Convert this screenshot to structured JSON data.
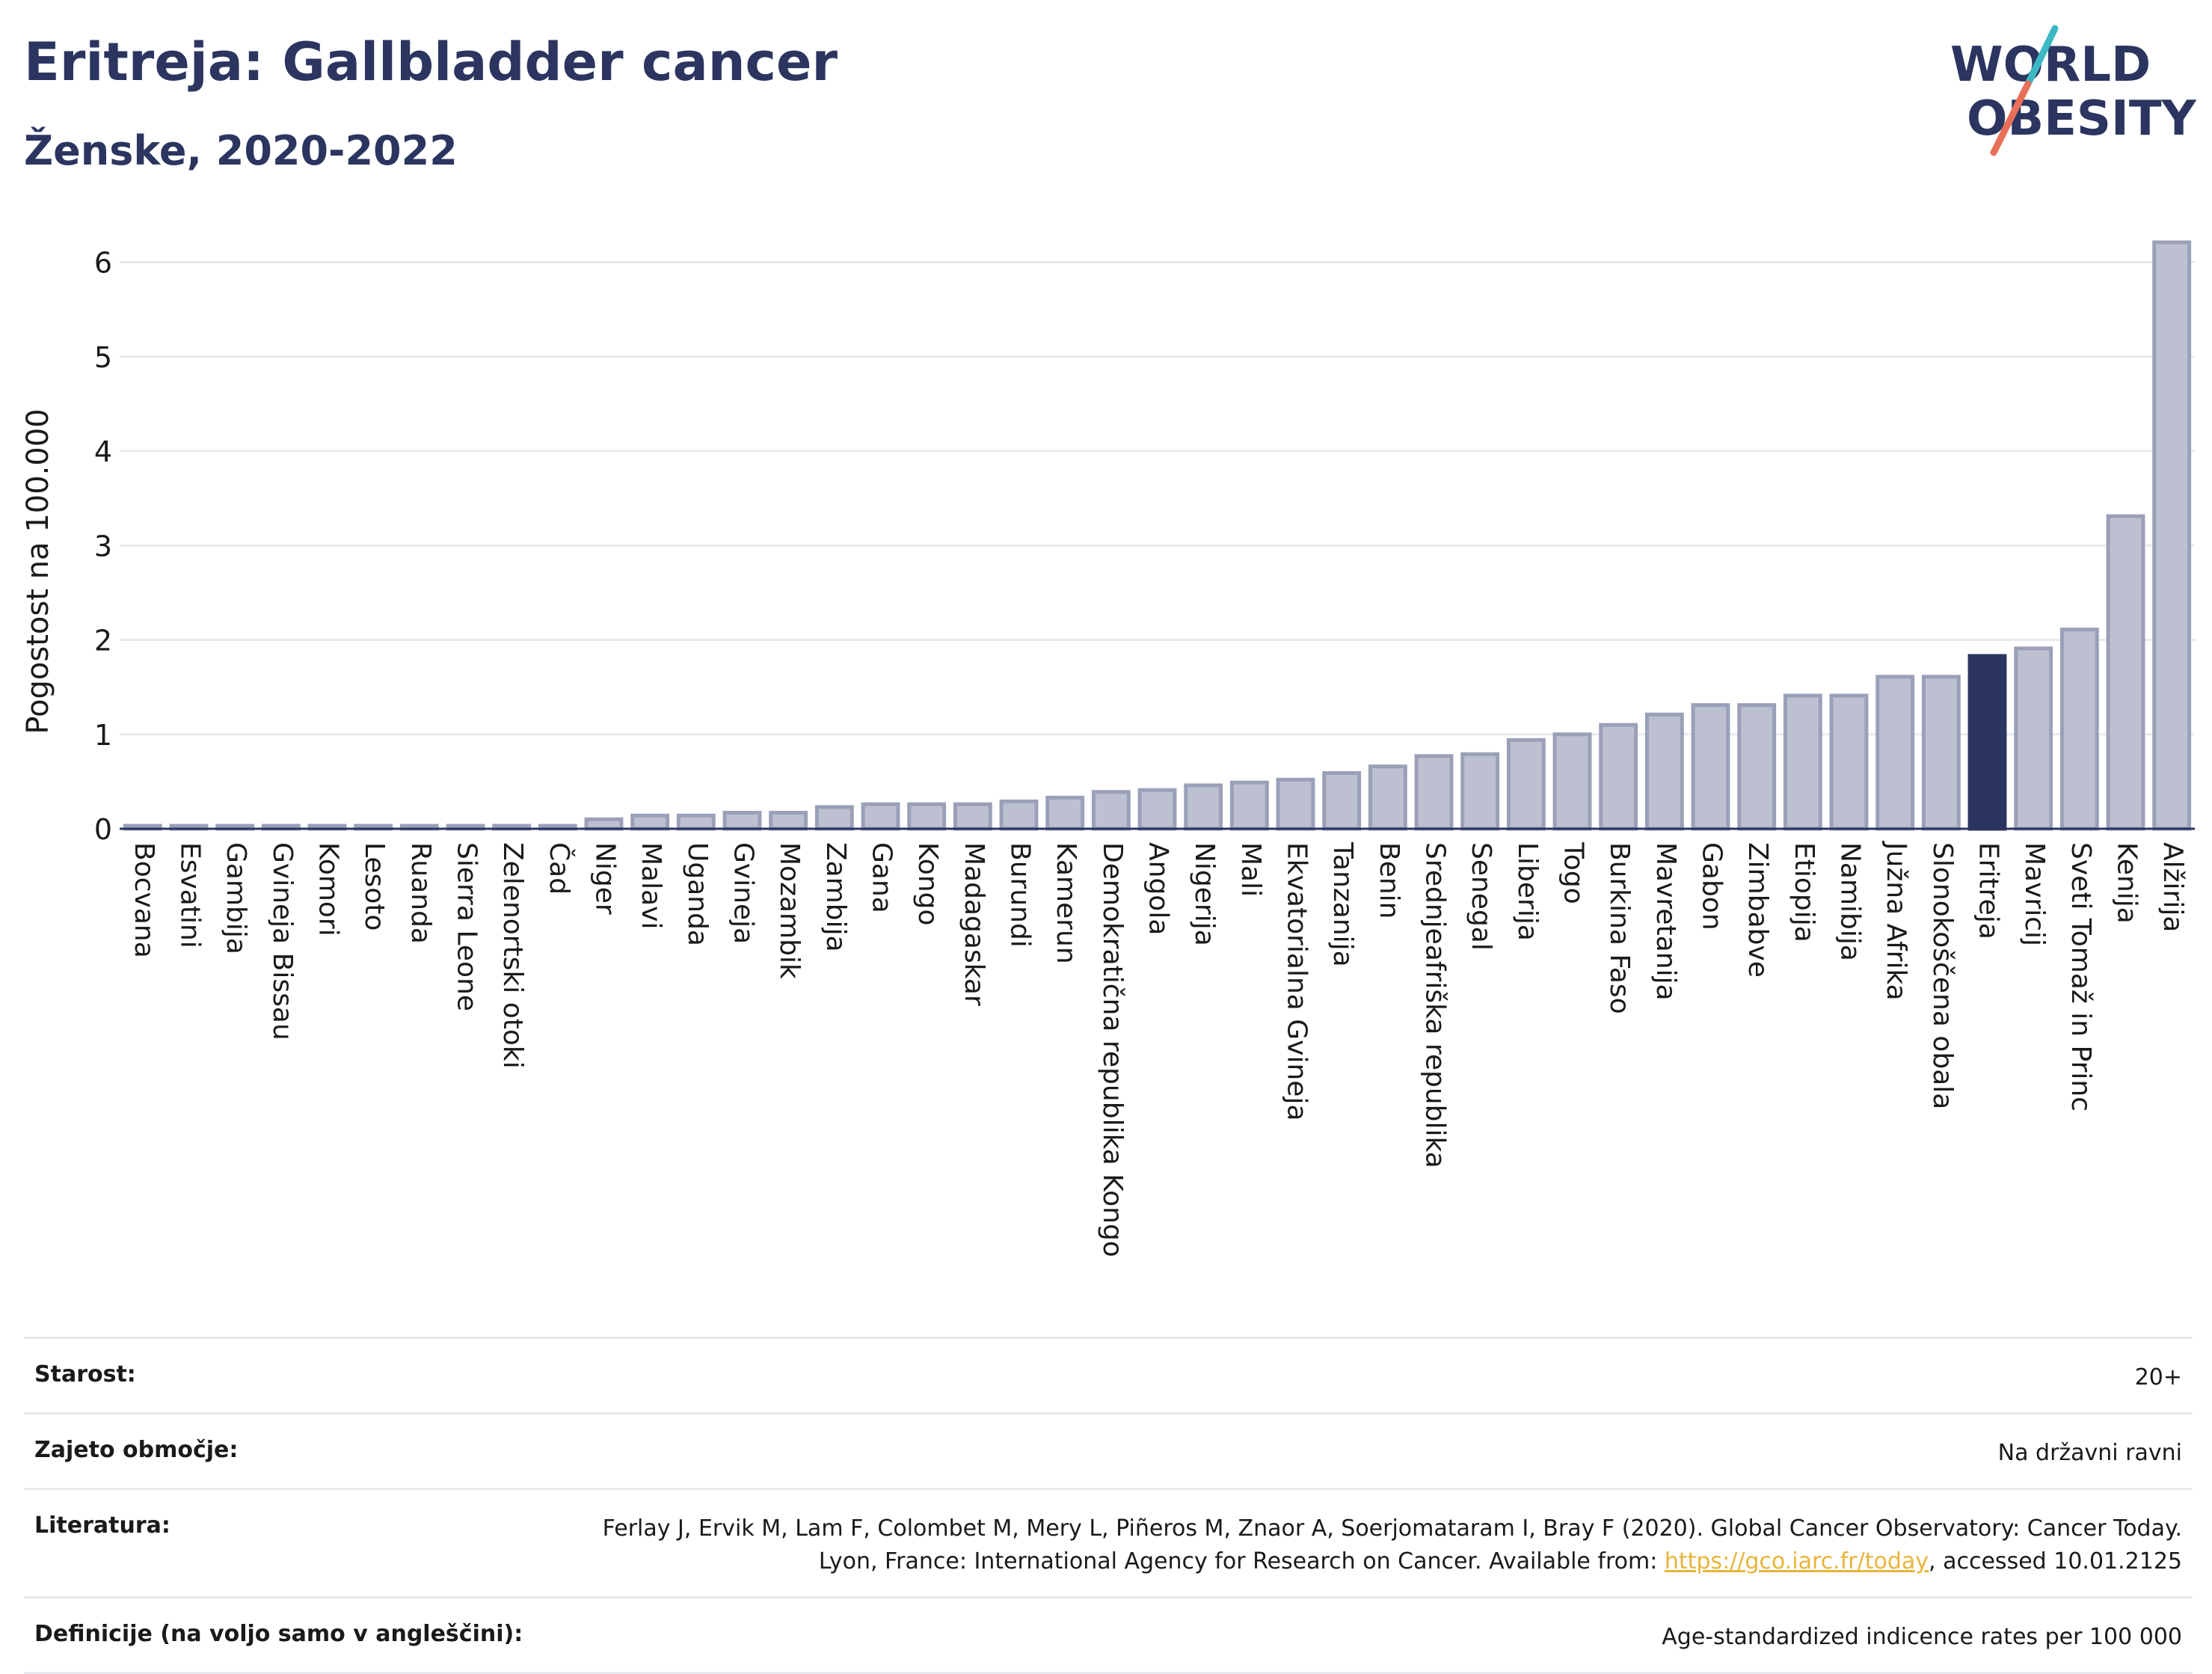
{
  "header": {
    "title": "Eritreja: Gallbladder cancer",
    "subtitle": "Ženske, 2020-2022"
  },
  "logo": {
    "line1": "WORLD",
    "line2": "OBESITY",
    "accent_colors": [
      "#3bb8c4",
      "#e8705a"
    ]
  },
  "chart_data": {
    "type": "bar",
    "ylabel": "Pogostost na 100.000",
    "xlabel": "",
    "ylim": [
      0,
      6.4
    ],
    "yticks": [
      0,
      1,
      2,
      3,
      4,
      5,
      6
    ],
    "grid": true,
    "highlight": "Eritreja",
    "colors": {
      "bar": "#bcc0d0",
      "bar_edge": "#9aa0b8",
      "highlight": "#2b3560",
      "axis": "#2b3560",
      "grid": "#e8eaf0"
    },
    "categories": [
      "Bocvana",
      "Esvatini",
      "Gambija",
      "Gvineja Bissau",
      "Komori",
      "Lesoto",
      "Ruanda",
      "Sierra Leone",
      "Zelenortski otoki",
      "Čad",
      "Niger",
      "Malavi",
      "Uganda",
      "Gvineja",
      "Mozambik",
      "Zambija",
      "Gana",
      "Kongo",
      "Madagaskar",
      "Burundi",
      "Kamerun",
      "Demokratična republika Kongo",
      "Angola",
      "Nigerija",
      "Mali",
      "Ekvatorialna Gvineja",
      "Tanzanija",
      "Benin",
      "Srednjeafriška republika",
      "Senegal",
      "Liberija",
      "Togo",
      "Burkina Faso",
      "Mavretanija",
      "Gabon",
      "Zimbabve",
      "Etiopija",
      "Namibija",
      "Južna Afrika",
      "Slonokoščena obala",
      "Eritreja",
      "Mavricij",
      "Sveti Tomaž in Princ",
      "Kenija",
      "Alžirija"
    ],
    "values": [
      0.02,
      0.02,
      0.02,
      0.02,
      0.02,
      0.02,
      0.02,
      0.02,
      0.02,
      0.02,
      0.1,
      0.14,
      0.14,
      0.17,
      0.17,
      0.23,
      0.26,
      0.26,
      0.26,
      0.29,
      0.33,
      0.39,
      0.41,
      0.46,
      0.49,
      0.52,
      0.59,
      0.66,
      0.77,
      0.79,
      0.94,
      1.0,
      1.1,
      1.21,
      1.31,
      1.31,
      1.41,
      1.41,
      1.61,
      1.61,
      1.83,
      1.91,
      2.11,
      3.31,
      6.21
    ]
  },
  "meta": {
    "age_label": "Starost:",
    "age_value": "20+",
    "area_label": "Zajeto območje:",
    "area_value": "Na državni ravni",
    "ref_label": "Literatura:",
    "ref_text": "Ferlay J, Ervik M, Lam F, Colombet M, Mery L, Piñeros M, Znaor A, Soerjomataram I, Bray F (2020). Global Cancer Observatory: Cancer Today. Lyon, France: International Agency for Research on Cancer. Available from: ",
    "ref_link": "https://gco.iarc.fr/today",
    "ref_tail": ", accessed 10.01.2125",
    "def_label": "Definicije (na voljo samo v angleščini):",
    "def_value": "Age-standardized indicence rates per 100 000"
  }
}
